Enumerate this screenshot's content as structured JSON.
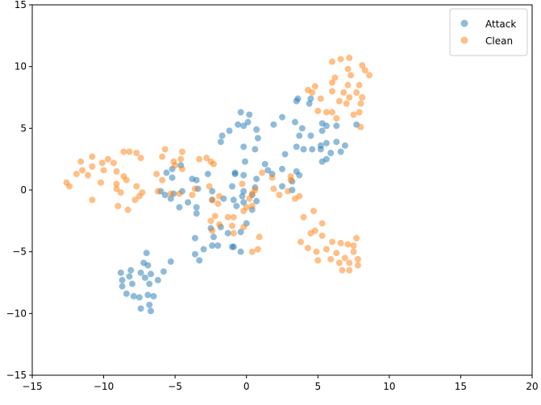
{
  "chart_data": {
    "type": "scatter",
    "xlim": [
      -15,
      20
    ],
    "xticks": [
      {
        "value": -15,
        "label": "−15"
      },
      {
        "value": -10,
        "label": "−10"
      },
      {
        "value": -5,
        "label": "−5"
      },
      0,
      5,
      10,
      15,
      20
    ],
    "ylim": [
      -15,
      15
    ],
    "yticks": [
      {
        "value": -15,
        "label": "−15"
      },
      {
        "value": -10,
        "label": "−10"
      },
      {
        "value": -5,
        "label": "−5"
      },
      0,
      5,
      10,
      15
    ],
    "grid": false,
    "legend": "upper right",
    "series": [
      {
        "name": "Attack",
        "color": "#1f77b4",
        "x": [
          -8.8,
          -8.7,
          -8.7,
          -8.2,
          -8.0,
          -8.4,
          -7.9,
          -7.5,
          -7.1,
          -7.4,
          -7.2,
          -7.0,
          -6.9,
          -6.7,
          -6.8,
          -6.9,
          -6.5,
          -6.8,
          -6.7,
          -7.4,
          -6.2,
          -5.8,
          -5.3,
          -8.1,
          -3.6,
          -3.6,
          -3.3,
          -3.0,
          -2.4,
          -2.0,
          -2.3,
          -2.5,
          -1.8,
          -1.3,
          -1.0,
          -0.9,
          -0.4,
          -0.4,
          0,
          0.4,
          -0.7,
          -0.9,
          -0.2,
          -0.3,
          0.4,
          0.6,
          0.7,
          -0.2,
          -0.2,
          -0.8,
          -1.0,
          -1.6,
          -2.4,
          -2.4,
          -2.7,
          -3.5,
          -3.8,
          -3.4,
          -3.5,
          -3.5,
          -4.1,
          -4.7,
          -5.1,
          -5.3,
          -5.7,
          -6.0,
          -5.6,
          -5.2,
          -4.6,
          -5.2,
          -4.5,
          -1.8,
          -1.7,
          -1.2,
          -0.6,
          -0.2,
          -0.4,
          0.2,
          0.1,
          0.7,
          0.8,
          0.6,
          -0.2,
          -0.1,
          -0.8,
          1.3,
          1.5,
          1.8,
          0.7,
          1.9,
          2.5,
          2.7,
          2.5,
          2.5,
          3.2,
          3.2,
          3.4,
          3.5,
          3.6,
          3.9,
          3.7,
          3.5,
          3.7,
          3.5,
          4.0,
          4.5,
          4.6,
          4.4,
          4.5,
          5.2,
          5.3,
          5.3,
          5.6,
          5.2,
          5.3,
          5.6,
          5.6,
          5.9,
          6.3,
          6.3,
          6.6,
          6.9,
          7.7
        ],
        "values": [
          -6.7,
          -7.3,
          -7.8,
          -7.0,
          -7.6,
          -8.4,
          -8.6,
          -8.7,
          -7.1,
          -6.7,
          -5.9,
          -5.1,
          -6.1,
          -6.8,
          -7.6,
          -8.5,
          -8.6,
          -9.3,
          -9.8,
          -9.6,
          -7.3,
          -6.6,
          -5.8,
          -6.5,
          -3.9,
          -5.2,
          -5.7,
          -4.8,
          -4.5,
          -4.5,
          -3.8,
          -3.1,
          -3.0,
          -3.5,
          -4.6,
          -4.6,
          -5.0,
          -3.4,
          -2.7,
          -1.6,
          -1.3,
          -0.8,
          -1.0,
          -0.5,
          -0.4,
          0.2,
          -0.9,
          -0.1,
          1.2,
          1.3,
          0.3,
          -0.7,
          -0.8,
          -0.1,
          1.3,
          0.8,
          0.9,
          0.1,
          -1.4,
          -1.9,
          -1.0,
          -1.4,
          -0.3,
          -0.7,
          -0.4,
          -0.1,
          1.4,
          1.7,
          2.0,
          1.0,
          -0.1,
          3.9,
          4.4,
          4.8,
          5.3,
          5.2,
          6.3,
          6.1,
          5.5,
          4.9,
          4.2,
          3.3,
          3.5,
          2.3,
          1.4,
          2.1,
          1.6,
          1.3,
          0.9,
          5.3,
          5.9,
          2.9,
          1.7,
          0.3,
          0.7,
          0,
          5.5,
          7.2,
          7.4,
          5.0,
          4.4,
          3.5,
          1.2,
          1.5,
          3.3,
          4.4,
          3.3,
          7.0,
          7.4,
          3.3,
          4.8,
          5.4,
          5.2,
          3.6,
          2.3,
          2.5,
          3.8,
          3.0,
          5.2,
          3.9,
          3.1,
          3.6,
          5.3
        ]
      },
      {
        "name": "Clean",
        "color": "#ff7f0e",
        "x": [
          -12.6,
          -12.4,
          -11.9,
          -11.6,
          -11.5,
          -11.1,
          -10.8,
          -10.8,
          -10.8,
          -10.2,
          -10.0,
          -10.1,
          -9.7,
          -9.3,
          -9.1,
          -9.1,
          -9.1,
          -8.8,
          -9.0,
          -8.6,
          -8.4,
          -8.3,
          -8.6,
          -8.2,
          -7.7,
          -7.4,
          -7.7,
          -7.8,
          -7.5,
          -7.3,
          -6.3,
          -6.2,
          -5.9,
          -5.7,
          -5.9,
          -5.3,
          -5.1,
          -5.0,
          -4.7,
          -4.6,
          -4.5,
          -4.5,
          -3.8,
          -3.6,
          -3.3,
          -2.8,
          -2.5,
          -2.3,
          -2.6,
          -2.4,
          -2.0,
          -1.9,
          -2.5,
          -2.2,
          -1.9,
          -2.4,
          -1.3,
          -0.9,
          -1.0,
          -0.9,
          -0.2,
          -0.2,
          0,
          0.4,
          0.4,
          0.6,
          0.2,
          -0.3,
          0.9,
          0.4,
          0.8,
          1.1,
          1.8,
          1.9,
          2.3,
          2.9,
          3.1,
          3.1,
          3.4,
          3.7,
          4.0,
          4.7,
          3.8,
          4.3,
          4.5,
          4.8,
          5.3,
          4.9,
          5.3,
          5.0,
          5.6,
          5.9,
          6.0,
          6.3,
          6.5,
          6.6,
          6.9,
          6.7,
          7.1,
          7.2,
          7.2,
          7.5,
          7.5,
          7.7,
          7.8,
          7.8,
          4.3,
          4.6,
          4.8,
          5.2,
          5.0,
          5.6,
          6.0,
          6.0,
          6.0,
          6.2,
          6.5,
          6.3,
          6.6,
          6.8,
          7.0,
          7.2,
          7.1,
          7.1,
          7.3,
          7.2,
          7.5,
          7.7,
          7.9,
          8.0,
          7.9,
          8.0,
          8.1,
          8.1,
          8.3,
          8.6,
          6.0
        ],
        "values": [
          0.6,
          0.3,
          1.3,
          2.3,
          1.6,
          1.2,
          2.7,
          1.9,
          -0.8,
          0.6,
          1.6,
          2.2,
          2.5,
          2.2,
          1.5,
          0.5,
          0.1,
          -0.2,
          -1.3,
          1.1,
          0.8,
          -1.6,
          3.1,
          3.1,
          3.0,
          2.6,
          0.3,
          -0.8,
          -0.5,
          -0.2,
          1.3,
          -0.1,
          2.7,
          3.3,
          0.8,
          -0.3,
          2.3,
          2.0,
          -0.3,
          2.5,
          3.1,
          1.7,
          -0.4,
          0.1,
          2.5,
          2.6,
          2.3,
          2.1,
          0.3,
          -0.8,
          -1.1,
          -0.5,
          -2.5,
          -2.1,
          -2.8,
          -3.3,
          -2.2,
          -2.2,
          -2.9,
          -3.5,
          -3.0,
          -1.7,
          -1.4,
          -1.3,
          -0.3,
          0,
          -0.7,
          0.5,
          -3.8,
          -5.0,
          -4.8,
          1.4,
          1.0,
          0.1,
          -0.4,
          -0.1,
          0.8,
          1.1,
          -0.7,
          -0.5,
          -2.2,
          -1.7,
          -4.2,
          -4.7,
          -3.5,
          -3.3,
          -2.7,
          -5.0,
          -3.7,
          -5.7,
          -4.8,
          -5.6,
          -4.2,
          -5.1,
          -5.9,
          -4.3,
          -5.5,
          -6.5,
          -4.4,
          -5.9,
          -6.5,
          -5.0,
          -4.5,
          -3.9,
          -5.6,
          -6.1,
          8.1,
          7.9,
          8.4,
          7.4,
          6.4,
          6.3,
          8.7,
          10.4,
          8.0,
          9.1,
          7.2,
          5.8,
          10.6,
          7.9,
          7.0,
          10.7,
          9.8,
          8.5,
          9.3,
          7.5,
          6.1,
          7.9,
          8.5,
          7.0,
          6.3,
          5.1,
          7.5,
          10.1,
          9.7,
          9.3,
          6.3
        ]
      }
    ]
  }
}
